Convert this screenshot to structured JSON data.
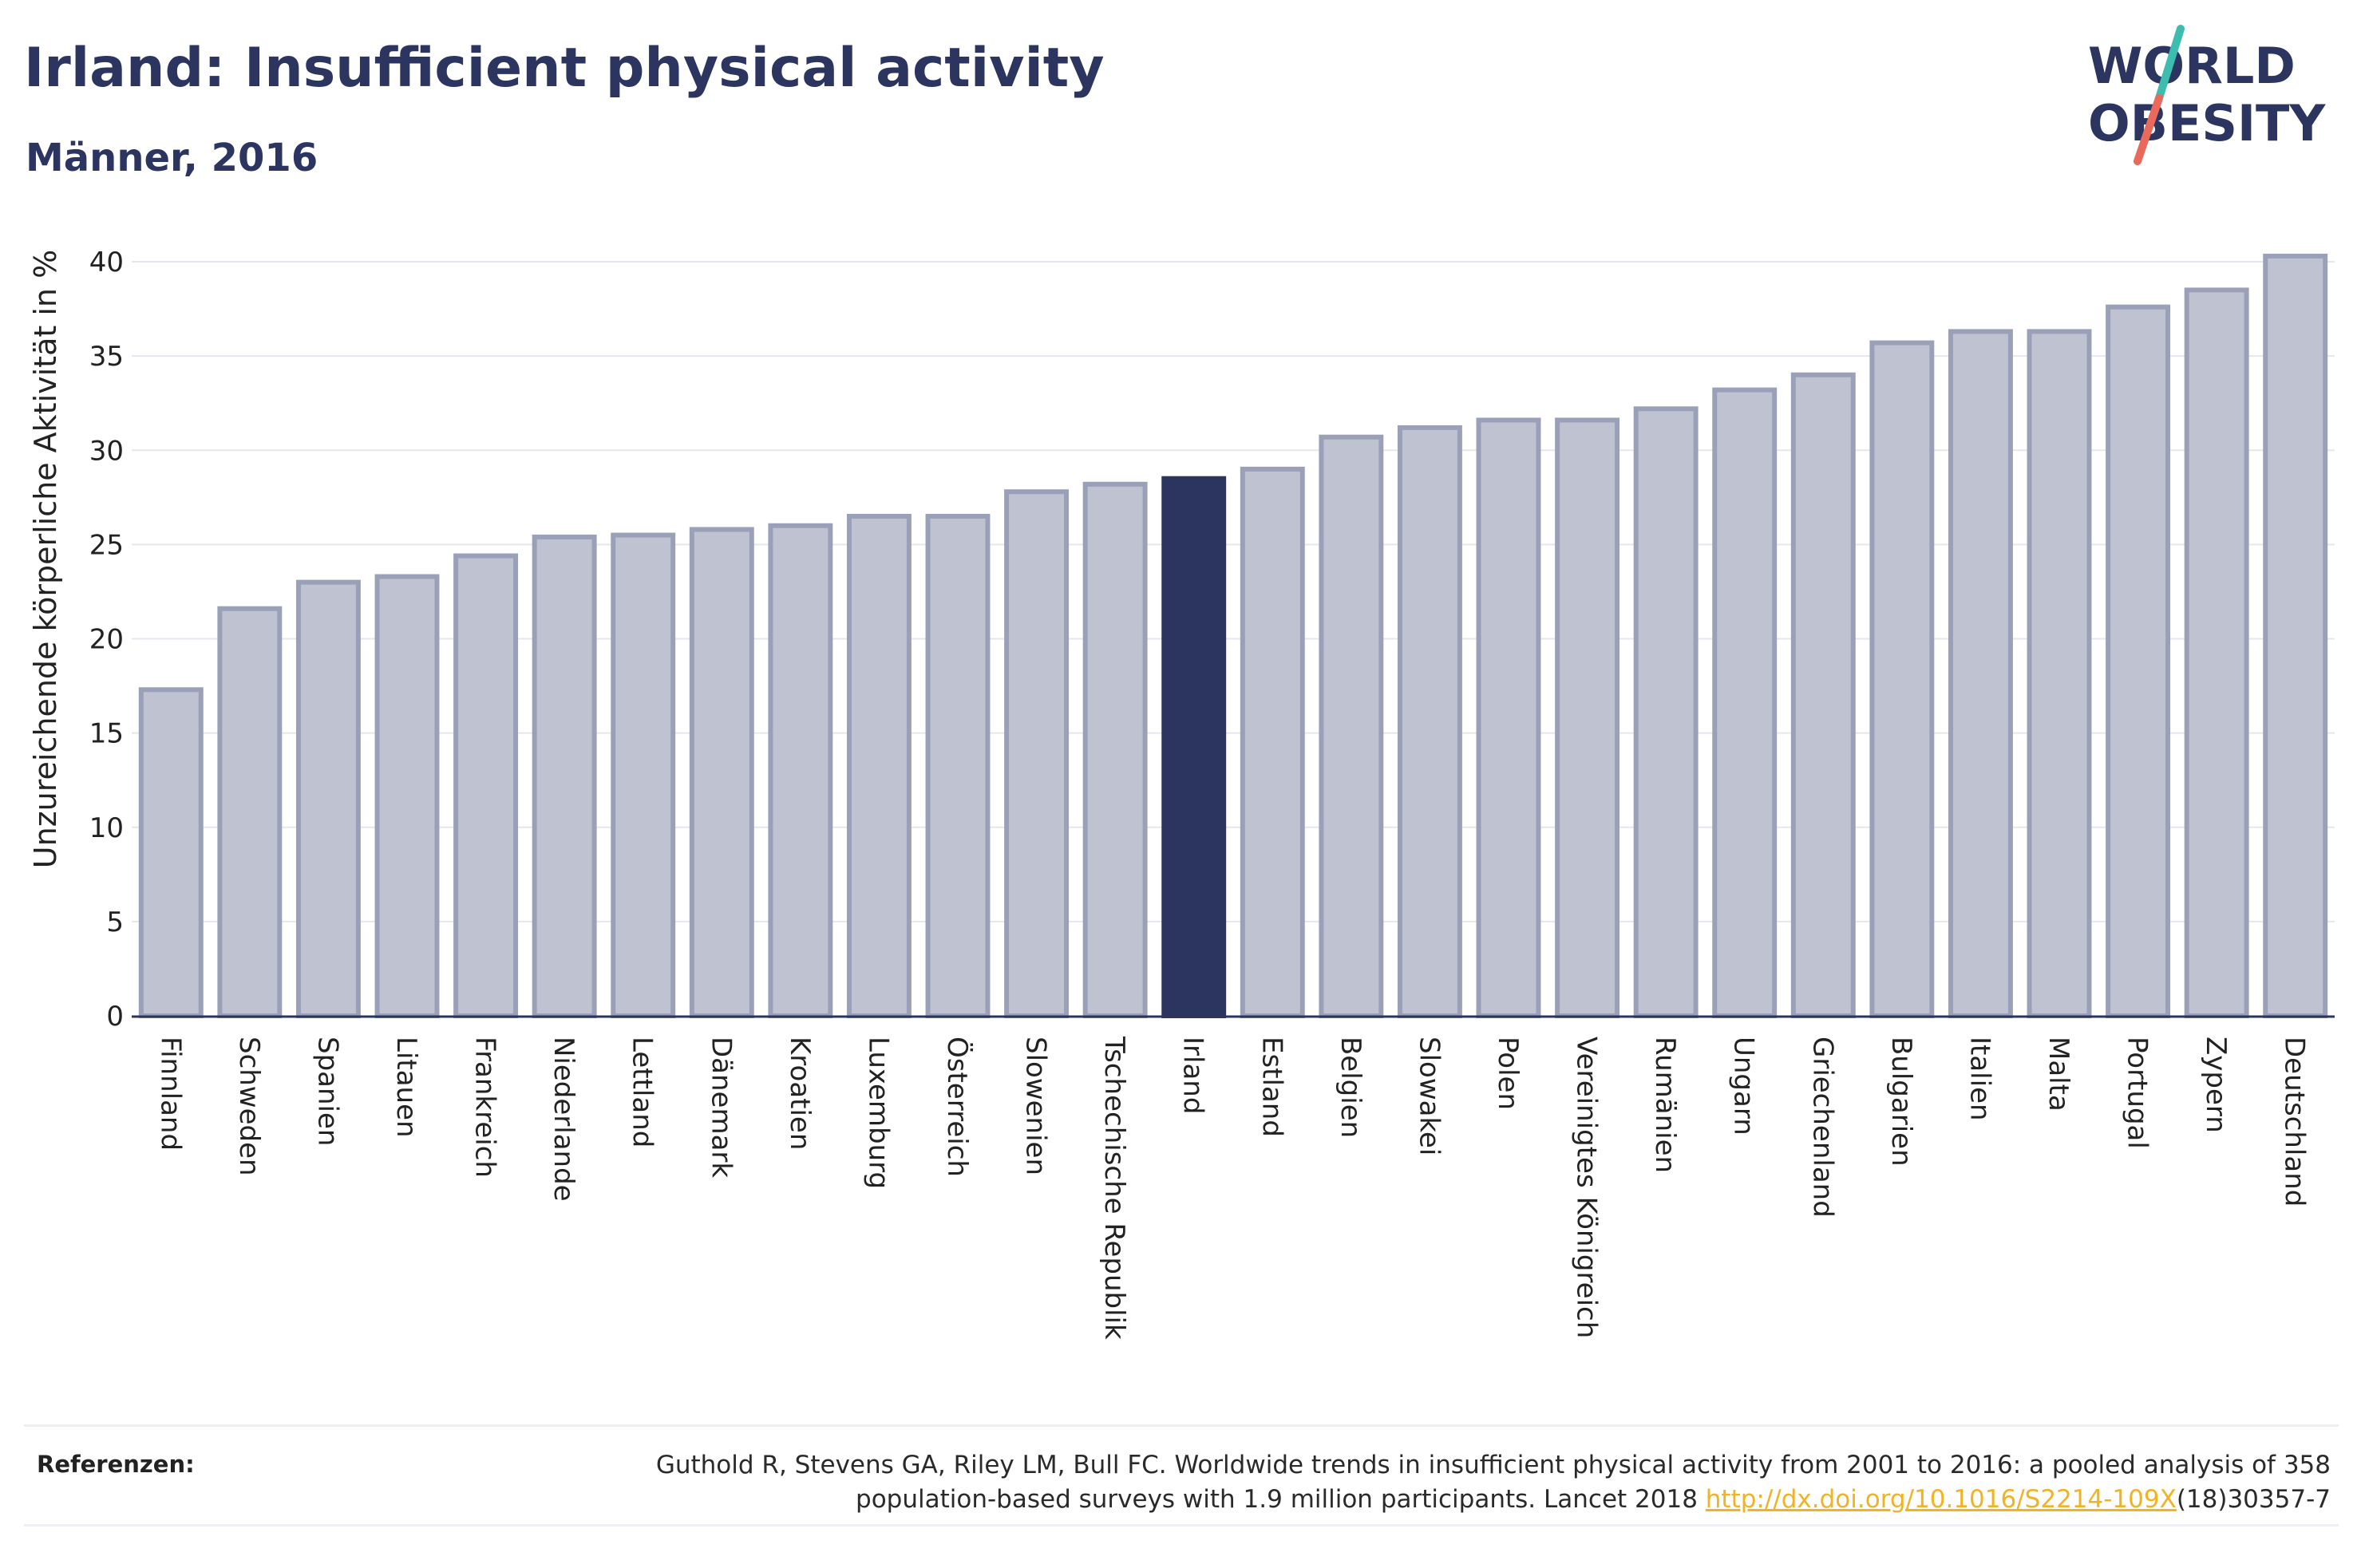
{
  "header": {
    "title": "Irland: Insufficient physical activity",
    "subtitle": "Männer, 2016"
  },
  "logo": {
    "line1": "WORLD",
    "line2": "OBESITY",
    "colors": {
      "text": "#2b3560",
      "slash_top": "#3dbdb0",
      "slash_bottom": "#e9695c"
    }
  },
  "chart_data": {
    "type": "bar",
    "title": "Irland: Insufficient physical activity",
    "subtitle": "Männer, 2016",
    "xlabel": "",
    "ylabel": "Unzureichende körperliche Aktivität in %",
    "ylim": [
      0,
      40
    ],
    "yticks": [
      0,
      5,
      10,
      15,
      20,
      25,
      30,
      35,
      40
    ],
    "grid": true,
    "highlight": "Irland",
    "colors": {
      "bar": "#bfc3d1",
      "bar_border": "#9aa0b7",
      "highlight": "#2b3560",
      "grid": "#e6e7ee",
      "axis": "#2b3560"
    },
    "categories": [
      "Finnland",
      "Schweden",
      "Spanien",
      "Litauen",
      "Frankreich",
      "Niederlande",
      "Lettland",
      "Dänemark",
      "Kroatien",
      "Luxemburg",
      "Österreich",
      "Slowenien",
      "Tschechische Republik",
      "Irland",
      "Estland",
      "Belgien",
      "Slowakei",
      "Polen",
      "Vereinigtes Königreich",
      "Rumänien",
      "Ungarn",
      "Griechenland",
      "Bulgarien",
      "Italien",
      "Malta",
      "Portugal",
      "Zypern",
      "Deutschland"
    ],
    "values": [
      17.3,
      21.6,
      23.0,
      23.3,
      24.4,
      25.4,
      25.5,
      25.8,
      26.0,
      26.5,
      26.5,
      27.8,
      28.2,
      28.5,
      29.0,
      30.7,
      31.2,
      31.6,
      31.6,
      32.2,
      33.2,
      34.0,
      35.7,
      36.3,
      36.3,
      37.6,
      38.5,
      40.3
    ]
  },
  "references": {
    "label": "Referenzen:",
    "text_line1": "Guthold R, Stevens GA, Riley LM, Bull FC. Worldwide trends in insufficient physical activity from 2001 to 2016: a pooled analysis of 358",
    "text_line2_pre": "population-based surveys with 1.9 million participants. Lancet 2018 ",
    "link_text": "http://dx.doi.org/10.1016/S2214-109X",
    "text_line2_post": "(18)30357-7"
  }
}
